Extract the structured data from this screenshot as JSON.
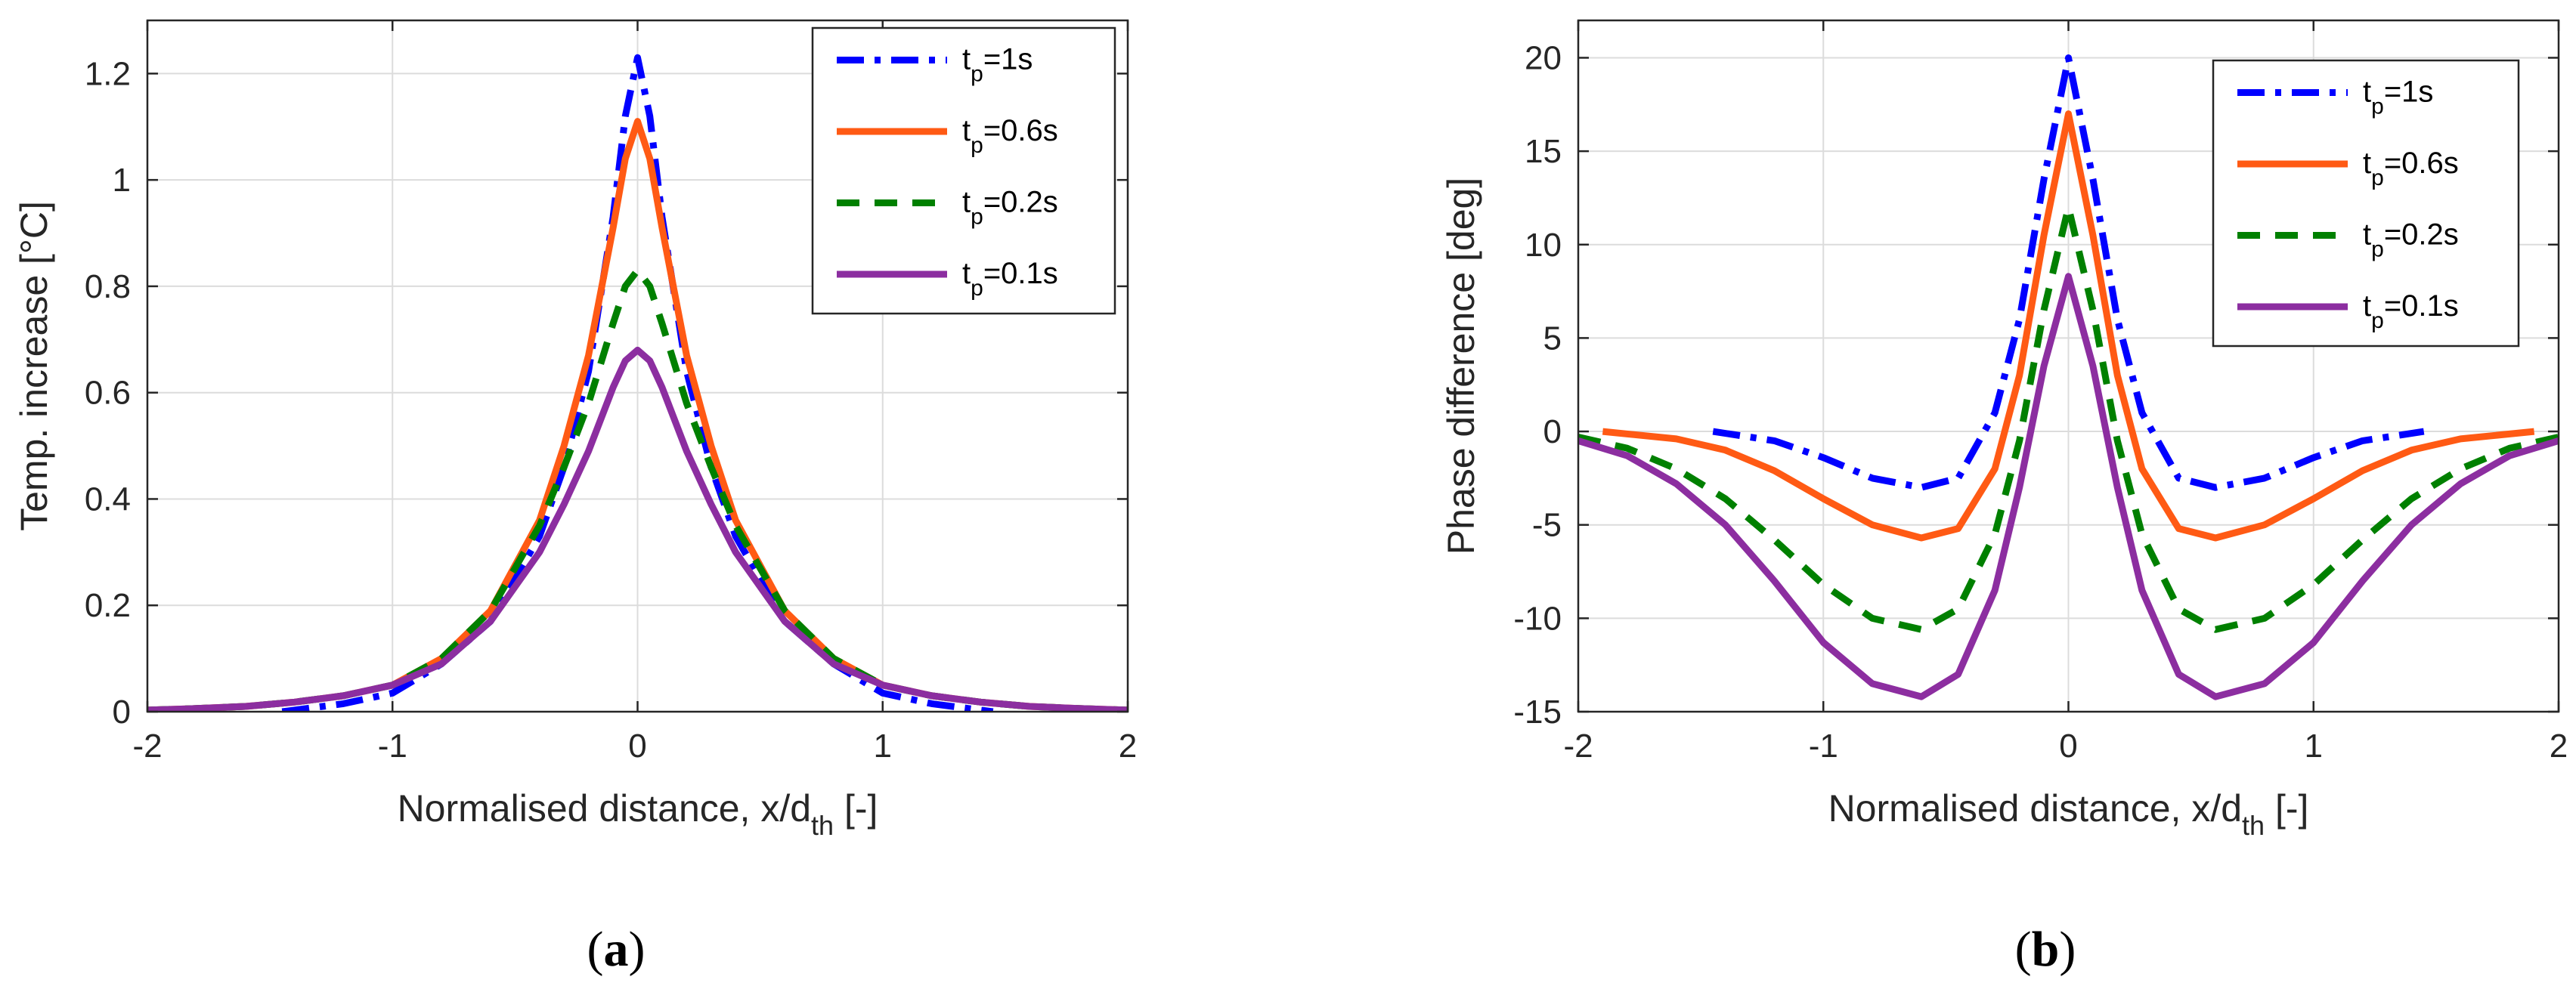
{
  "figure": {
    "panel_labels": [
      "a",
      "b"
    ]
  },
  "chart_data": [
    {
      "type": "line",
      "panel": "a",
      "title": "",
      "xlabel_main": "Normalised distance, x/d",
      "xlabel_sub": "th",
      "xlabel_tail": " [-]",
      "ylabel": "Temp. increase [°C]",
      "xlim": [
        -2,
        2
      ],
      "ylim": [
        0,
        1.3
      ],
      "xticks": [
        -2,
        -1,
        0,
        1,
        2
      ],
      "xtick_labels": [
        "-2",
        "-1",
        "0",
        "1",
        "2"
      ],
      "yticks": [
        0,
        0.2,
        0.4,
        0.6,
        0.8,
        1,
        1.2
      ],
      "ytick_labels": [
        "0",
        "0.2",
        "0.4",
        "0.6",
        "0.8",
        "1",
        "1.2"
      ],
      "grid": true,
      "legend_position": "top-right",
      "series": [
        {
          "name": "t_p=1s",
          "label_main": "t",
          "label_sub": "p",
          "label_tail": "=1s",
          "color": "#0000ff",
          "style": "dashdot",
          "x": [
            -1.45,
            -1.2,
            -1.0,
            -0.8,
            -0.6,
            -0.4,
            -0.3,
            -0.2,
            -0.1,
            -0.05,
            0,
            0.05,
            0.1,
            0.2,
            0.3,
            0.4,
            0.6,
            0.8,
            1.0,
            1.2,
            1.45
          ],
          "y": [
            0.0,
            0.015,
            0.035,
            0.09,
            0.17,
            0.33,
            0.46,
            0.64,
            0.93,
            1.12,
            1.23,
            1.12,
            0.93,
            0.64,
            0.46,
            0.33,
            0.17,
            0.09,
            0.035,
            0.015,
            0.0
          ]
        },
        {
          "name": "t_p=0.6s",
          "label_main": "t",
          "label_sub": "p",
          "label_tail": "=0.6s",
          "color": "#ff5a14",
          "style": "solid",
          "x": [
            -2.0,
            -1.8,
            -1.6,
            -1.4,
            -1.2,
            -1.0,
            -0.8,
            -0.6,
            -0.4,
            -0.3,
            -0.2,
            -0.1,
            -0.05,
            0,
            0.05,
            0.1,
            0.2,
            0.3,
            0.4,
            0.6,
            0.8,
            1.0,
            1.2,
            1.4,
            1.6,
            1.8,
            2.0
          ],
          "y": [
            0.003,
            0.006,
            0.01,
            0.018,
            0.03,
            0.05,
            0.1,
            0.19,
            0.36,
            0.5,
            0.67,
            0.91,
            1.04,
            1.11,
            1.04,
            0.91,
            0.67,
            0.5,
            0.36,
            0.19,
            0.1,
            0.05,
            0.03,
            0.018,
            0.01,
            0.006,
            0.003
          ]
        },
        {
          "name": "t_p=0.2s",
          "label_main": "t",
          "label_sub": "p",
          "label_tail": "=0.2s",
          "color": "#008000",
          "style": "dashed",
          "x": [
            -2.0,
            -1.8,
            -1.6,
            -1.4,
            -1.2,
            -1.0,
            -0.8,
            -0.6,
            -0.4,
            -0.3,
            -0.2,
            -0.1,
            -0.05,
            0,
            0.05,
            0.1,
            0.2,
            0.3,
            0.4,
            0.6,
            0.8,
            1.0,
            1.2,
            1.4,
            1.6,
            1.8,
            2.0
          ],
          "y": [
            0.003,
            0.006,
            0.01,
            0.018,
            0.03,
            0.05,
            0.1,
            0.19,
            0.35,
            0.46,
            0.58,
            0.73,
            0.8,
            0.83,
            0.8,
            0.73,
            0.58,
            0.46,
            0.35,
            0.19,
            0.1,
            0.05,
            0.03,
            0.018,
            0.01,
            0.006,
            0.003
          ]
        },
        {
          "name": "t_p=0.1s",
          "label_main": "t",
          "label_sub": "p",
          "label_tail": "=0.1s",
          "color": "#8c2ea0",
          "style": "solid",
          "x": [
            -2.0,
            -1.8,
            -1.6,
            -1.4,
            -1.2,
            -1.0,
            -0.8,
            -0.6,
            -0.4,
            -0.3,
            -0.2,
            -0.1,
            -0.05,
            0,
            0.05,
            0.1,
            0.2,
            0.3,
            0.4,
            0.6,
            0.8,
            1.0,
            1.2,
            1.4,
            1.6,
            1.8,
            2.0
          ],
          "y": [
            0.003,
            0.006,
            0.01,
            0.018,
            0.03,
            0.05,
            0.09,
            0.17,
            0.3,
            0.39,
            0.49,
            0.61,
            0.66,
            0.68,
            0.66,
            0.61,
            0.49,
            0.39,
            0.3,
            0.17,
            0.09,
            0.05,
            0.03,
            0.018,
            0.01,
            0.006,
            0.003
          ]
        }
      ]
    },
    {
      "type": "line",
      "panel": "b",
      "title": "",
      "xlabel_main": "Normalised distance, x/d",
      "xlabel_sub": "th",
      "xlabel_tail": " [-]",
      "ylabel": "Phase difference [deg]",
      "xlim": [
        -2,
        2
      ],
      "ylim": [
        -15,
        22
      ],
      "xticks": [
        -2,
        -1,
        0,
        1,
        2
      ],
      "xtick_labels": [
        "-2",
        "-1",
        "0",
        "1",
        "2"
      ],
      "yticks": [
        -15,
        -10,
        -5,
        0,
        5,
        10,
        15,
        20
      ],
      "ytick_labels": [
        "-15",
        "-10",
        "-5",
        "0",
        "5",
        "10",
        "15",
        "20"
      ],
      "grid": true,
      "legend_position": "top-right",
      "series": [
        {
          "name": "t_p=1s",
          "label_main": "t",
          "label_sub": "p",
          "label_tail": "=1s",
          "color": "#0000ff",
          "style": "dashdot",
          "x": [
            -1.45,
            -1.2,
            -1.0,
            -0.8,
            -0.6,
            -0.45,
            -0.3,
            -0.2,
            -0.1,
            0,
            0.1,
            0.2,
            0.3,
            0.45,
            0.6,
            0.8,
            1.0,
            1.2,
            1.45
          ],
          "y": [
            0.0,
            -0.5,
            -1.4,
            -2.5,
            -3.0,
            -2.5,
            1.0,
            6.0,
            13.5,
            20.0,
            13.5,
            6.0,
            1.0,
            -2.5,
            -3.0,
            -2.5,
            -1.4,
            -0.5,
            0.0
          ]
        },
        {
          "name": "t_p=0.6s",
          "label_main": "t",
          "label_sub": "p",
          "label_tail": "=0.6s",
          "color": "#ff5a14",
          "style": "solid",
          "x": [
            -1.9,
            -1.6,
            -1.4,
            -1.2,
            -1.0,
            -0.8,
            -0.6,
            -0.45,
            -0.3,
            -0.2,
            -0.1,
            0,
            0.1,
            0.2,
            0.3,
            0.45,
            0.6,
            0.8,
            1.0,
            1.2,
            1.4,
            1.6,
            1.9
          ],
          "y": [
            0.0,
            -0.4,
            -1.0,
            -2.1,
            -3.6,
            -5.0,
            -5.7,
            -5.2,
            -2.0,
            3.0,
            10.5,
            17.0,
            10.5,
            3.0,
            -2.0,
            -5.2,
            -5.7,
            -5.0,
            -3.6,
            -2.1,
            -1.0,
            -0.4,
            0.0
          ]
        },
        {
          "name": "t_p=0.2s",
          "label_main": "t",
          "label_sub": "p",
          "label_tail": "=0.2s",
          "color": "#008000",
          "style": "dashed",
          "x": [
            -2.0,
            -1.8,
            -1.6,
            -1.4,
            -1.2,
            -1.0,
            -0.8,
            -0.6,
            -0.45,
            -0.3,
            -0.2,
            -0.1,
            0,
            0.1,
            0.2,
            0.3,
            0.45,
            0.6,
            0.8,
            1.0,
            1.2,
            1.4,
            1.6,
            1.8,
            2.0
          ],
          "y": [
            -0.3,
            -0.9,
            -2.0,
            -3.6,
            -5.8,
            -8.2,
            -10.0,
            -10.6,
            -9.5,
            -5.5,
            -0.5,
            6.5,
            12.0,
            6.5,
            -0.5,
            -5.5,
            -9.5,
            -10.6,
            -10.0,
            -8.2,
            -5.8,
            -3.6,
            -2.0,
            -0.9,
            -0.3
          ]
        },
        {
          "name": "t_p=0.1s",
          "label_main": "t",
          "label_sub": "p",
          "label_tail": "=0.1s",
          "color": "#8c2ea0",
          "style": "solid",
          "x": [
            -2.0,
            -1.8,
            -1.6,
            -1.4,
            -1.2,
            -1.0,
            -0.8,
            -0.6,
            -0.45,
            -0.3,
            -0.2,
            -0.1,
            0,
            0.1,
            0.2,
            0.3,
            0.45,
            0.6,
            0.8,
            1.0,
            1.2,
            1.4,
            1.6,
            1.8,
            2.0
          ],
          "y": [
            -0.5,
            -1.3,
            -2.8,
            -5.0,
            -8.0,
            -11.3,
            -13.5,
            -14.2,
            -13.0,
            -8.5,
            -3.0,
            3.5,
            8.3,
            3.5,
            -3.0,
            -8.5,
            -13.0,
            -14.2,
            -13.5,
            -11.3,
            -8.0,
            -5.0,
            -2.8,
            -1.3,
            -0.5
          ]
        }
      ]
    }
  ]
}
